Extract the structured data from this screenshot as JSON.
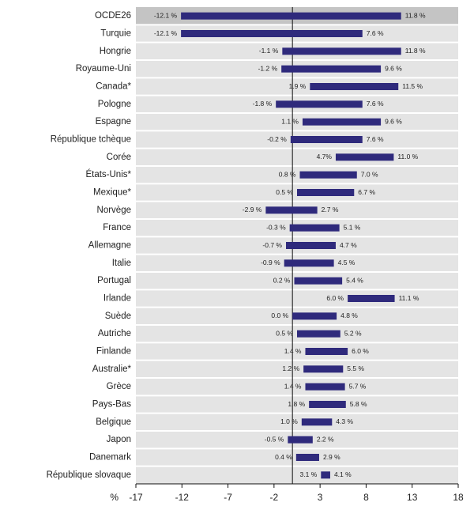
{
  "chart_data": {
    "type": "range_bar",
    "x_label": "%",
    "categories": [
      "OCDE26",
      "Turquie",
      "Hongrie",
      "Royaume-Uni",
      "Canada*",
      "Pologne",
      "Espagne",
      "République tchèque",
      "Corée",
      "États-Unis*",
      "Mexique*",
      "Norvège",
      "France",
      "Allemagne",
      "Italie",
      "Portugal",
      "Irlande",
      "Suède",
      "Autriche",
      "Finlande",
      "Australie*",
      "Grèce",
      "Pays-Bas",
      "Belgique",
      "Japon",
      "Danemark",
      "République slovaque"
    ],
    "series": [
      {
        "name": "low",
        "color": "#2f2a7c",
        "values": [
          -12.1,
          -12.1,
          -1.1,
          -1.2,
          1.9,
          -1.8,
          1.1,
          -0.2,
          4.7,
          0.8,
          0.5,
          -2.9,
          -0.3,
          -0.7,
          -0.9,
          0.2,
          6.0,
          0.0,
          0.5,
          1.4,
          1.2,
          1.4,
          1.8,
          1.0,
          -0.5,
          0.4,
          3.1
        ],
        "value_labels": [
          "-12.1 %",
          "-12.1 %",
          "-1.1 %",
          "-1.2 %",
          "1.9 %",
          "-1.8 %",
          "1.1 %",
          "-0.2 %",
          "4.7%",
          "0.8 %",
          "0.5 %",
          "-2.9 %",
          "-0.3 %",
          "-0.7 %",
          "-0.9 %",
          "0.2 %",
          "6.0 %",
          "0.0 %",
          "0.5 %",
          "1.4 %",
          "1.2 %",
          "1.4 %",
          "1.8 %",
          "1.0 %",
          "-0.5 %",
          "0.4 %",
          "3.1 %"
        ]
      },
      {
        "name": "high",
        "color": "#2f2a7c",
        "values": [
          11.8,
          7.6,
          11.8,
          9.6,
          11.5,
          7.6,
          9.6,
          7.6,
          11.0,
          7.0,
          6.7,
          2.7,
          5.1,
          4.7,
          4.5,
          5.4,
          11.1,
          4.8,
          5.2,
          6.0,
          5.5,
          5.7,
          5.8,
          4.3,
          2.2,
          2.9,
          4.1
        ],
        "value_labels": [
          "11.8 %",
          "7.6 %",
          "11.8 %",
          "9.6 %",
          "11.5 %",
          "7.6 %",
          "9.6 %",
          "7.6 %",
          "11.0 %",
          "7.0 %",
          "6.7 %",
          "2.7 %",
          "5.1 %",
          "4.7 %",
          "4.5 %",
          "5.4 %",
          "11.1 %",
          "4.8 %",
          "5.2 %",
          "6.0 %",
          "5.5 %",
          "5.7 %",
          "5.8 %",
          "4.3 %",
          "2.2 %",
          "2.9 %",
          "4.1 %"
        ]
      }
    ],
    "xlim": [
      -17,
      18
    ],
    "xticks": [
      -17,
      -12,
      -7,
      -2,
      3,
      8,
      13,
      18
    ]
  }
}
